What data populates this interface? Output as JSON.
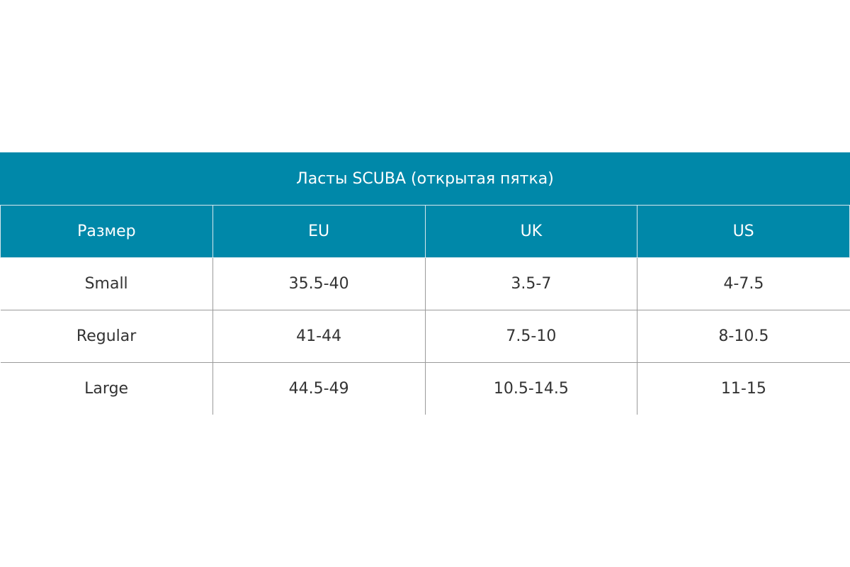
{
  "table": {
    "title": "Ласты SCUBA (открытая пятка)",
    "header": [
      "Размер",
      "EU",
      "UK",
      "US"
    ],
    "rows": [
      [
        "Small",
        "35.5-40",
        "3.5-7",
        "4-7.5"
      ],
      [
        "Regular",
        "41-44",
        "7.5-10",
        "8-10.5"
      ],
      [
        "Large",
        "44.5-49",
        "10.5-14.5",
        "11-15"
      ]
    ]
  }
}
